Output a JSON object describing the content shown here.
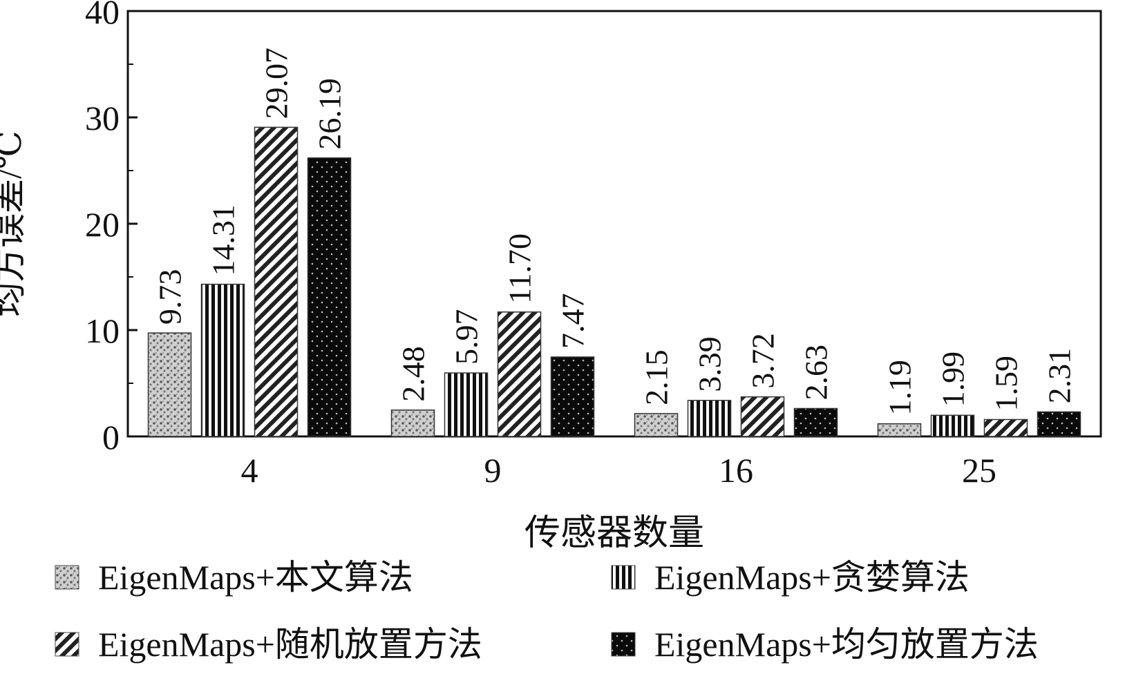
{
  "chart_data": {
    "type": "bar",
    "title": "",
    "xlabel": "传感器数量",
    "ylabel": "均方误差/℃",
    "ylim": [
      0,
      40
    ],
    "yticks": [
      0,
      10,
      20,
      30,
      40
    ],
    "categories": [
      "4",
      "9",
      "16",
      "25"
    ],
    "series": [
      {
        "name": "EigenMaps+本文算法",
        "pattern": "dots",
        "color": "#555555",
        "values": [
          9.73,
          2.48,
          2.15,
          1.19
        ],
        "labels": [
          "9.73",
          "2.48",
          "2.15",
          "1.19"
        ]
      },
      {
        "name": "EigenMaps+贪婪算法",
        "pattern": "vertical-stripes",
        "color": "#111111",
        "values": [
          14.31,
          5.97,
          3.39,
          1.99
        ],
        "labels": [
          "14.31",
          "5.97",
          "3.39",
          "1.99"
        ]
      },
      {
        "name": "EigenMaps+随机放置方法",
        "pattern": "diagonal-stripes",
        "color": "#222222",
        "values": [
          29.07,
          11.7,
          3.72,
          1.59
        ],
        "labels": [
          "29.07",
          "11.70",
          "3.72",
          "1.59"
        ]
      },
      {
        "name": "EigenMaps+均匀放置方法",
        "pattern": "solid-dark",
        "color": "#0a0a0a",
        "values": [
          26.19,
          7.47,
          2.63,
          2.31
        ],
        "labels": [
          "26.19",
          "7.47",
          "2.63",
          "2.31"
        ]
      }
    ],
    "legend_placement": "bottom",
    "grid": false
  }
}
